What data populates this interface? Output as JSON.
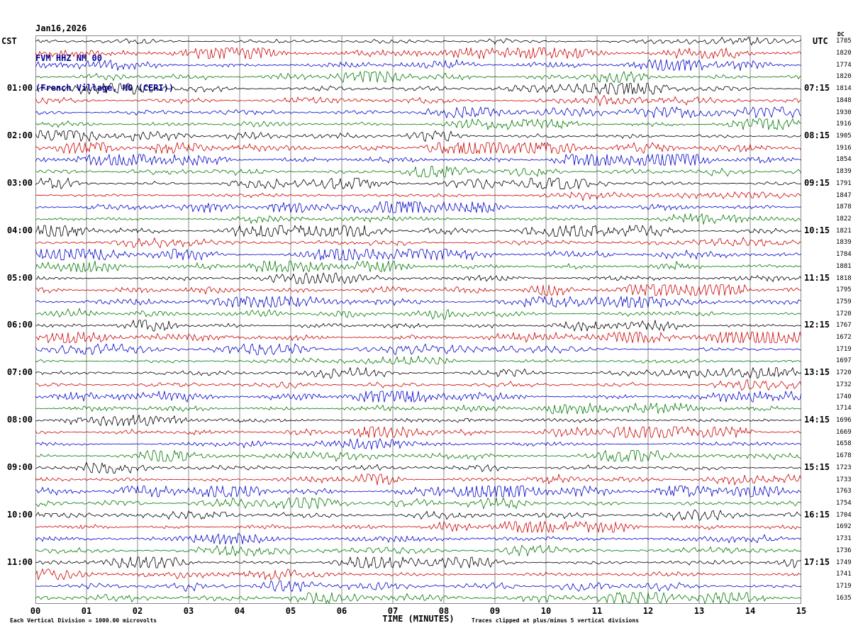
{
  "title": {
    "date": "Jan16,2026",
    "station": "FVM HHZ NM 00",
    "location": "(French Village, MO (CERI))"
  },
  "axis": {
    "left_header": "CST",
    "right_header": "UTC",
    "dc_header": "DC",
    "x_title": "TIME (MINUTES)",
    "x_ticks": [
      "00",
      "01",
      "02",
      "03",
      "04",
      "05",
      "06",
      "07",
      "08",
      "09",
      "10",
      "11",
      "12",
      "13",
      "14",
      "15"
    ],
    "footer_left": "Each Vertical Division = 1000.00 microvolts",
    "footer_right": "Traces clipped at plus/minus 5 vertical divisions"
  },
  "chart_data": {
    "type": "line",
    "subtype": "helicorder-seismogram",
    "title": "FVM HHZ NM 00 (French Village, MO (CERI)) Jan16,2026",
    "xlabel": "TIME (MINUTES)",
    "x_range_minutes": [
      0,
      15
    ],
    "minutes_per_line": 15,
    "lines_per_hour": 4,
    "num_rows": 48,
    "clip_divisions": 5,
    "volts_per_division_microvolts": 1000.0,
    "grid": true,
    "grid_color": "#8a8a8a",
    "color_cycle": [
      "black",
      "red",
      "blue",
      "green"
    ],
    "trace_colors": {
      "black": "#000000",
      "red": "#cc0000",
      "blue": "#0000cc",
      "green": "#007700"
    },
    "note": "Continuous seismic background noise traces; individual sample amplitudes not legible, rendered as band-limited noise clipped at +/-5 divisions.",
    "rows": [
      {
        "color": "black",
        "cst": "",
        "utc": "",
        "dc": 1785
      },
      {
        "color": "red",
        "cst": "",
        "utc": "",
        "dc": 1820
      },
      {
        "color": "blue",
        "cst": "",
        "utc": "",
        "dc": 1774
      },
      {
        "color": "green",
        "cst": "",
        "utc": "",
        "dc": 1820
      },
      {
        "color": "black",
        "cst": "01:00",
        "utc": "07:15",
        "dc": 1814
      },
      {
        "color": "red",
        "cst": "",
        "utc": "",
        "dc": 1848
      },
      {
        "color": "blue",
        "cst": "",
        "utc": "",
        "dc": 1930
      },
      {
        "color": "green",
        "cst": "",
        "utc": "",
        "dc": 1916
      },
      {
        "color": "black",
        "cst": "02:00",
        "utc": "08:15",
        "dc": 1905
      },
      {
        "color": "red",
        "cst": "",
        "utc": "",
        "dc": 1916
      },
      {
        "color": "blue",
        "cst": "",
        "utc": "",
        "dc": 1854
      },
      {
        "color": "green",
        "cst": "",
        "utc": "",
        "dc": 1839
      },
      {
        "color": "black",
        "cst": "03:00",
        "utc": "09:15",
        "dc": 1791
      },
      {
        "color": "red",
        "cst": "",
        "utc": "",
        "dc": 1847
      },
      {
        "color": "blue",
        "cst": "",
        "utc": "",
        "dc": 1878
      },
      {
        "color": "green",
        "cst": "",
        "utc": "",
        "dc": 1822
      },
      {
        "color": "black",
        "cst": "04:00",
        "utc": "10:15",
        "dc": 1821
      },
      {
        "color": "red",
        "cst": "",
        "utc": "",
        "dc": 1839
      },
      {
        "color": "blue",
        "cst": "",
        "utc": "",
        "dc": 1784
      },
      {
        "color": "green",
        "cst": "",
        "utc": "",
        "dc": 1881
      },
      {
        "color": "black",
        "cst": "05:00",
        "utc": "11:15",
        "dc": 1818
      },
      {
        "color": "red",
        "cst": "",
        "utc": "",
        "dc": 1795
      },
      {
        "color": "blue",
        "cst": "",
        "utc": "",
        "dc": 1759
      },
      {
        "color": "green",
        "cst": "",
        "utc": "",
        "dc": 1720
      },
      {
        "color": "black",
        "cst": "06:00",
        "utc": "12:15",
        "dc": 1767
      },
      {
        "color": "red",
        "cst": "",
        "utc": "",
        "dc": 1672
      },
      {
        "color": "blue",
        "cst": "",
        "utc": "",
        "dc": 1719
      },
      {
        "color": "green",
        "cst": "",
        "utc": "",
        "dc": 1697
      },
      {
        "color": "black",
        "cst": "07:00",
        "utc": "13:15",
        "dc": 1720
      },
      {
        "color": "red",
        "cst": "",
        "utc": "",
        "dc": 1732
      },
      {
        "color": "blue",
        "cst": "",
        "utc": "",
        "dc": 1740
      },
      {
        "color": "green",
        "cst": "",
        "utc": "",
        "dc": 1714
      },
      {
        "color": "black",
        "cst": "08:00",
        "utc": "14:15",
        "dc": 1696
      },
      {
        "color": "red",
        "cst": "",
        "utc": "",
        "dc": 1669
      },
      {
        "color": "blue",
        "cst": "",
        "utc": "",
        "dc": 1658
      },
      {
        "color": "green",
        "cst": "",
        "utc": "",
        "dc": 1678
      },
      {
        "color": "black",
        "cst": "09:00",
        "utc": "15:15",
        "dc": 1723
      },
      {
        "color": "red",
        "cst": "",
        "utc": "",
        "dc": 1733
      },
      {
        "color": "blue",
        "cst": "",
        "utc": "",
        "dc": 1763
      },
      {
        "color": "green",
        "cst": "",
        "utc": "",
        "dc": 1754
      },
      {
        "color": "black",
        "cst": "10:00",
        "utc": "16:15",
        "dc": 1704
      },
      {
        "color": "red",
        "cst": "",
        "utc": "",
        "dc": 1692
      },
      {
        "color": "blue",
        "cst": "",
        "utc": "",
        "dc": 1731
      },
      {
        "color": "green",
        "cst": "",
        "utc": "",
        "dc": 1736
      },
      {
        "color": "black",
        "cst": "11:00",
        "utc": "17:15",
        "dc": 1749
      },
      {
        "color": "red",
        "cst": "",
        "utc": "",
        "dc": 1741
      },
      {
        "color": "blue",
        "cst": "",
        "utc": "",
        "dc": 1719
      },
      {
        "color": "green",
        "cst": "",
        "utc": "",
        "dc": 1635
      }
    ]
  }
}
